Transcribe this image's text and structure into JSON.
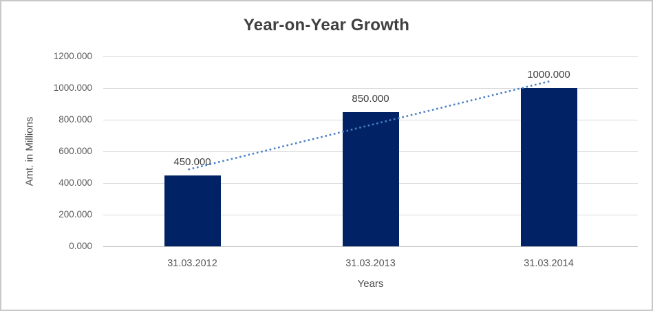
{
  "chart_data": {
    "type": "bar",
    "title": "Year-on-Year Growth",
    "xlabel": "Years",
    "ylabel": "Amt. in Millions",
    "categories": [
      "31.03.2012",
      "31.03.2013",
      "31.03.2014"
    ],
    "values": [
      450,
      850,
      1000
    ],
    "value_labels": [
      "450.000",
      "850.000",
      "1000.000"
    ],
    "ylim": [
      0,
      1200
    ],
    "ytick_values": [
      0,
      200,
      400,
      600,
      800,
      1000,
      1200
    ],
    "ytick_labels": [
      "0.000",
      "200.000",
      "400.000",
      "600.000",
      "800.000",
      "1000.000",
      "1200.000"
    ],
    "grid": true,
    "legend": "none",
    "trendline": {
      "type": "linear",
      "style": "dotted"
    }
  },
  "colors": {
    "bar": "#012264",
    "trendline": "#4a80c8",
    "gridline": "#d9d9d9",
    "axis_line": "#bfbfbf",
    "tick_text": "#595959",
    "title_text": "#3f3f3f",
    "frame_border": "#c8c8c8"
  }
}
